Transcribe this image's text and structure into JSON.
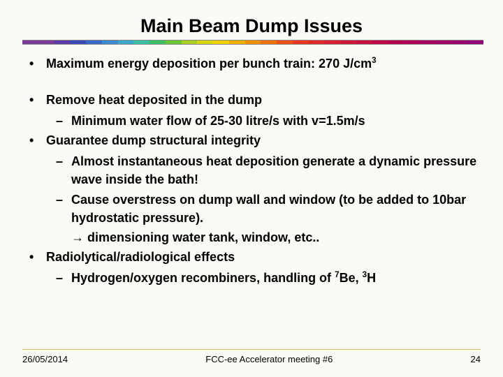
{
  "title": "Main Beam Dump Issues",
  "rainbow_colors": [
    "#7a3a9a",
    "#7a3a9a",
    "#5a3aa8",
    "#3a4ab8",
    "#3a6ac8",
    "#3a8ad0",
    "#3aa8c8",
    "#3ac0a0",
    "#3ac060",
    "#6ac830",
    "#a8d020",
    "#d8d810",
    "#f0d000",
    "#f0b000",
    "#f09000",
    "#f07000",
    "#f05010",
    "#e83820",
    "#e02828",
    "#d82030",
    "#d01838",
    "#c81040",
    "#c00848",
    "#b80050",
    "#b00058",
    "#a80060",
    "#a00068",
    "#980070",
    "#900078"
  ],
  "bullets": {
    "b1_html": "Maximum energy deposition per bunch train: 270 J/cm<sup>3</sup>",
    "b2": "Remove heat deposited in the dump",
    "b2_1": "Minimum water flow of 25-30 litre/s with v=1.5m/s",
    "b3": "Guarantee dump structural integrity",
    "b3_1": "Almost instantaneous heat deposition generate a dynamic pressure wave inside the bath!",
    "b3_2": "Cause overstress on dump wall and window (to be added to 10bar hydrostatic pressure).",
    "b3_3": "→ dimensioning water tank, window, etc..",
    "b4": "Radiolytical/radiological effects",
    "b4_1_html": "Hydrogen/oxygen recombiners, handling of <sup>7</sup>Be, <sup>3</sup>H"
  },
  "footer": {
    "date": "26/05/2014",
    "meeting": "FCC-ee Accelerator meeting #6",
    "page": "24"
  }
}
